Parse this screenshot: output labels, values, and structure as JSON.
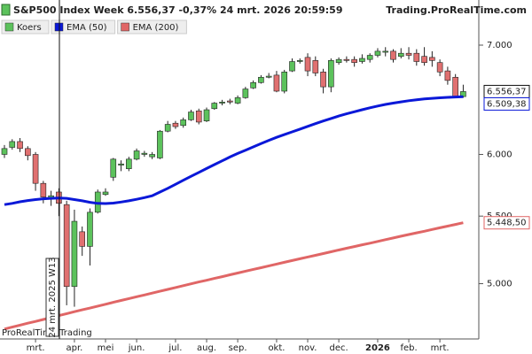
{
  "chart_data": {
    "type": "candlestick",
    "title": "S&P500 Index Week 6.556,37 -0,37% 24 mrt. 2026 20:59:59",
    "source": "Trading.ProRealTime.com",
    "watermark": "ProRealTime Trading",
    "crosshair_label": "24 mrt. 2025 W13",
    "log_scale": true,
    "grid": false,
    "categories": [
      null,
      null,
      null,
      null,
      "mrt.",
      null,
      null,
      null,
      null,
      "apr.",
      null,
      null,
      null,
      "mei",
      null,
      null,
      null,
      "jun.",
      null,
      null,
      null,
      null,
      "jul.",
      null,
      null,
      null,
      "aug.",
      null,
      null,
      null,
      "sep.",
      null,
      null,
      null,
      null,
      "okt.",
      null,
      null,
      null,
      "nov.",
      null,
      null,
      null,
      "dec.",
      null,
      null,
      null,
      null,
      "2026",
      null,
      null,
      null,
      "feb.",
      null,
      null,
      null,
      "mrt.",
      null,
      null,
      null
    ],
    "ylim": [
      4625,
      7460
    ],
    "yticks": [
      {
        "value": 5000,
        "label": "5.000"
      },
      {
        "value": 5500,
        "label": "5.500"
      },
      {
        "value": 6000,
        "label": "6.000"
      },
      {
        "value": 7000,
        "label": "7.000"
      }
    ],
    "series": [
      {
        "name": "Koers",
        "type": "candlestick",
        "up_color": "#5cc25c",
        "down_color": "#e07070",
        "open": [
          6000,
          6060,
          6110,
          6050,
          6000,
          5760,
          5640,
          5690,
          5590,
          4980,
          5380,
          5270,
          5530,
          5670,
          5810,
          5910,
          5880,
          5960,
          6000,
          5980,
          5970,
          6200,
          6270,
          6250,
          6300,
          6380,
          6290,
          6400,
          6450,
          6470,
          6450,
          6500,
          6590,
          6640,
          6690,
          6710,
          6560,
          6750,
          6840,
          6880,
          6850,
          6740,
          6600,
          6830,
          6860,
          6860,
          6840,
          6860,
          6900,
          6930,
          6940,
          6890,
          6920,
          6920,
          6890,
          6880,
          6830,
          6750,
          6690,
          6510
        ],
        "high": [
          6080,
          6130,
          6140,
          6070,
          6020,
          5780,
          5700,
          5720,
          5620,
          5550,
          5420,
          5560,
          5710,
          5720,
          5970,
          5950,
          5980,
          6050,
          6030,
          6020,
          6210,
          6290,
          6290,
          6320,
          6390,
          6400,
          6410,
          6460,
          6480,
          6490,
          6520,
          6600,
          6660,
          6710,
          6730,
          6750,
          6760,
          6870,
          6870,
          6920,
          6890,
          6770,
          6870,
          6880,
          6890,
          6890,
          6910,
          6920,
          6970,
          6980,
          6960,
          6970,
          6980,
          6960,
          6980,
          6940,
          6860,
          6790,
          6720,
          6620
        ],
        "low": [
          5970,
          6040,
          6020,
          5950,
          5700,
          5600,
          5580,
          5500,
          4850,
          4840,
          5200,
          5130,
          5520,
          5660,
          5780,
          5860,
          5860,
          5950,
          5980,
          5960,
          5960,
          6190,
          6220,
          6230,
          6290,
          6260,
          6280,
          6390,
          6430,
          6440,
          6440,
          6490,
          6580,
          6630,
          6680,
          6550,
          6540,
          6740,
          6820,
          6700,
          6700,
          6540,
          6550,
          6810,
          6830,
          6790,
          6820,
          6830,
          6880,
          6890,
          6830,
          6870,
          6860,
          6800,
          6800,
          6790,
          6700,
          6620,
          6500,
          6500
        ],
        "close": [
          6050,
          6110,
          6050,
          5990,
          5760,
          5650,
          5660,
          5600,
          4980,
          5460,
          5270,
          5530,
          5690,
          5690,
          5960,
          5920,
          5960,
          6030,
          6010,
          6000,
          6200,
          6260,
          6240,
          6300,
          6370,
          6280,
          6390,
          6450,
          6460,
          6460,
          6500,
          6580,
          6640,
          6690,
          6700,
          6560,
          6740,
          6840,
          6850,
          6750,
          6730,
          6600,
          6850,
          6860,
          6850,
          6830,
          6870,
          6900,
          6940,
          6940,
          6860,
          6920,
          6900,
          6840,
          6830,
          6850,
          6740,
          6660,
          6510,
          6556.37
        ],
        "value_labels": [
          null,
          null,
          null,
          null,
          null,
          null,
          null,
          null,
          null,
          null,
          null,
          null,
          null,
          null,
          null,
          null,
          null,
          null,
          null,
          null,
          null,
          null,
          null,
          null,
          null,
          null,
          null,
          null,
          null,
          null,
          null,
          null,
          null,
          null,
          null,
          null,
          null,
          null,
          null,
          null,
          null,
          null,
          null,
          null,
          null,
          null,
          null,
          null,
          null,
          null,
          null,
          null,
          null,
          null,
          null,
          null,
          null,
          null,
          null,
          "6.556,37"
        ]
      },
      {
        "name": "EMA (50)",
        "type": "line",
        "color": "#0a18d8",
        "values": [
          5590,
          5600,
          5612,
          5622,
          5630,
          5636,
          5640,
          5642,
          5640,
          5630,
          5620,
          5608,
          5600,
          5598,
          5602,
          5610,
          5620,
          5632,
          5645,
          5660,
          5690,
          5720,
          5752,
          5785,
          5818,
          5850,
          5882,
          5914,
          5946,
          5978,
          6008,
          6036,
          6064,
          6092,
          6120,
          6146,
          6170,
          6194,
          6218,
          6242,
          6266,
          6290,
          6312,
          6334,
          6354,
          6372,
          6390,
          6408,
          6424,
          6438,
          6450,
          6462,
          6472,
          6480,
          6488,
          6494,
          6499,
          6503,
          6506,
          6509.38
        ],
        "value_labels": [
          null,
          null,
          null,
          null,
          null,
          null,
          null,
          null,
          null,
          null,
          null,
          null,
          null,
          null,
          null,
          null,
          null,
          null,
          null,
          null,
          null,
          null,
          null,
          null,
          null,
          null,
          null,
          null,
          null,
          null,
          null,
          null,
          null,
          null,
          null,
          null,
          null,
          null,
          null,
          null,
          null,
          null,
          null,
          null,
          null,
          null,
          null,
          null,
          null,
          null,
          null,
          null,
          null,
          null,
          null,
          null,
          null,
          null,
          null,
          "6.509,38"
        ]
      },
      {
        "name": "EMA (200)",
        "type": "line",
        "color": "#e06666",
        "values": [
          4690,
          4703,
          4716,
          4729,
          4741,
          4754,
          4767,
          4780,
          4793,
          4806,
          4819,
          4831,
          4844,
          4857,
          4870,
          4883,
          4896,
          4909,
          4921,
          4934,
          4947,
          4960,
          4973,
          4986,
          4999,
          5012,
          5024,
          5037,
          5050,
          5063,
          5076,
          5089,
          5102,
          5114,
          5127,
          5140,
          5153,
          5166,
          5179,
          5192,
          5204,
          5217,
          5230,
          5243,
          5256,
          5269,
          5282,
          5294,
          5307,
          5320,
          5333,
          5346,
          5359,
          5372,
          5384,
          5397,
          5410,
          5423,
          5436,
          5448.5
        ],
        "value_labels": [
          null,
          null,
          null,
          null,
          null,
          null,
          null,
          null,
          null,
          null,
          null,
          null,
          null,
          null,
          null,
          null,
          null,
          null,
          null,
          null,
          null,
          null,
          null,
          null,
          null,
          null,
          null,
          null,
          null,
          null,
          null,
          null,
          null,
          null,
          null,
          null,
          null,
          null,
          null,
          null,
          null,
          null,
          null,
          null,
          null,
          null,
          null,
          null,
          null,
          null,
          null,
          null,
          null,
          null,
          null,
          null,
          null,
          null,
          null,
          "5.448,50"
        ]
      }
    ]
  }
}
